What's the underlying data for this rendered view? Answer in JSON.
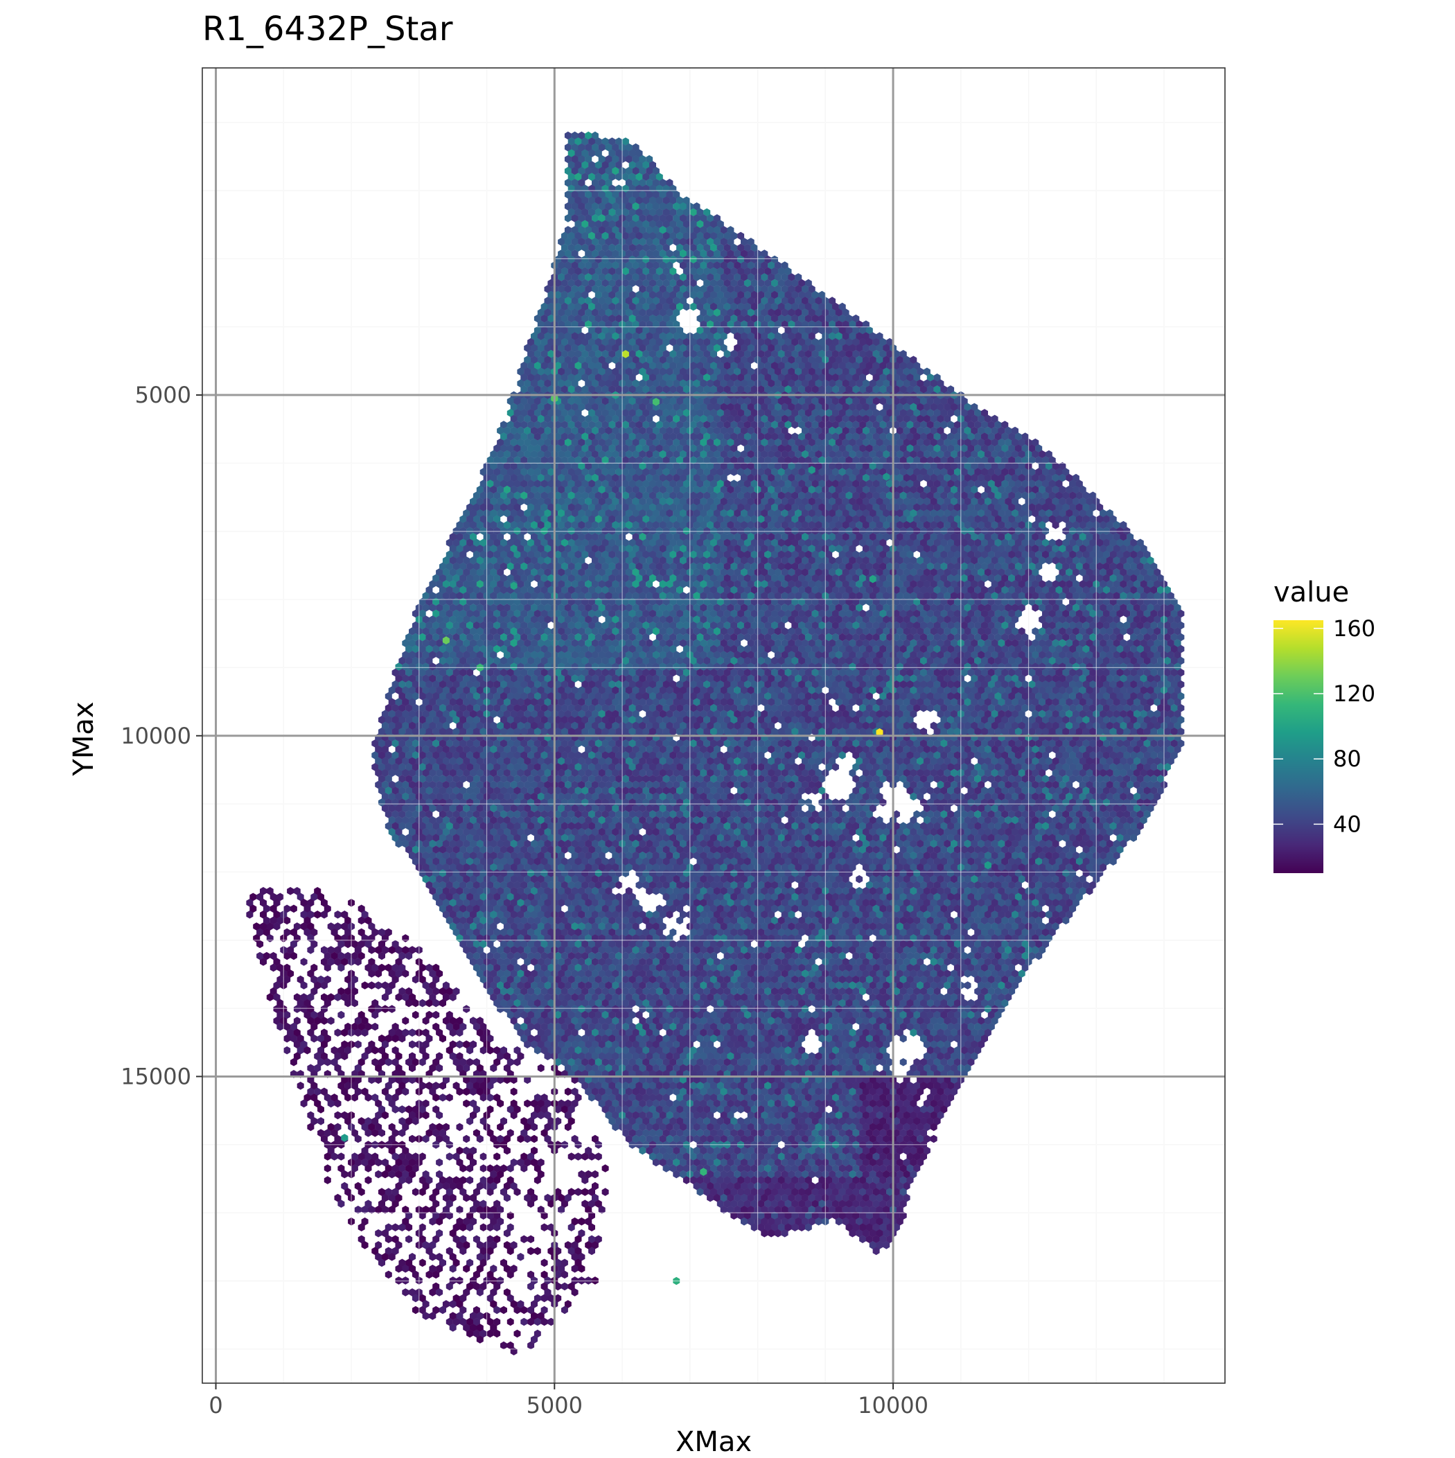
{
  "chart_data": {
    "type": "heatmap",
    "title": "R1_6432P_Star",
    "xlabel": "XMax",
    "ylabel": "YMax",
    "xlim": [
      -200,
      14900
    ],
    "ylim": [
      19500,
      200
    ],
    "y_reversed": true,
    "grid": true,
    "x_ticks": [
      {
        "value": 0,
        "label": "0"
      },
      {
        "value": 5000,
        "label": "5000"
      },
      {
        "value": 10000,
        "label": "10000"
      }
    ],
    "y_ticks": [
      {
        "value": 5000,
        "label": "5000"
      },
      {
        "value": 10000,
        "label": "10000"
      },
      {
        "value": 15000,
        "label": "15000"
      }
    ],
    "legend": {
      "title": "value",
      "placement": "right",
      "min": 10,
      "max": 165,
      "ticks": [
        {
          "value": 160,
          "label": "160"
        },
        {
          "value": 120,
          "label": "120"
        },
        {
          "value": 80,
          "label": "80"
        },
        {
          "value": 40,
          "label": "40"
        }
      ],
      "colormap": "viridis",
      "stops": [
        "#440154",
        "#482878",
        "#3E4A89",
        "#31688E",
        "#26828E",
        "#1F9E89",
        "#35B779",
        "#6DCD59",
        "#B4DE2C",
        "#FDE725"
      ]
    },
    "hex_spacing": 100,
    "tissue_region": [
      [
        5200,
        1100
      ],
      [
        6200,
        1300
      ],
      [
        6800,
        2000
      ],
      [
        7700,
        2600
      ],
      [
        8700,
        3300
      ],
      [
        9800,
        4100
      ],
      [
        11000,
        5000
      ],
      [
        12000,
        5600
      ],
      [
        12800,
        6300
      ],
      [
        13700,
        7200
      ],
      [
        14300,
        8200
      ],
      [
        14300,
        10000
      ],
      [
        13800,
        11200
      ],
      [
        12800,
        12400
      ],
      [
        12100,
        13300
      ],
      [
        11600,
        14100
      ],
      [
        11100,
        15000
      ],
      [
        10700,
        15700
      ],
      [
        10200,
        16800
      ],
      [
        10100,
        17300
      ],
      [
        9800,
        17600
      ],
      [
        9100,
        17100
      ],
      [
        8200,
        17400
      ],
      [
        7700,
        17100
      ],
      [
        7000,
        16600
      ],
      [
        6100,
        16000
      ],
      [
        5300,
        15000
      ],
      [
        4500,
        14500
      ],
      [
        3700,
        13200
      ],
      [
        3100,
        12200
      ],
      [
        2500,
        11300
      ],
      [
        2300,
        10200
      ],
      [
        2600,
        9200
      ],
      [
        3000,
        8000
      ],
      [
        3700,
        6700
      ],
      [
        4200,
        5500
      ],
      [
        4800,
        3700
      ],
      [
        5200,
        2400
      ]
    ],
    "sparse_region": [
      [
        400,
        12300
      ],
      [
        1400,
        12200
      ],
      [
        2400,
        12600
      ],
      [
        3100,
        13200
      ],
      [
        4200,
        14500
      ],
      [
        5300,
        15000
      ],
      [
        5800,
        16400
      ],
      [
        5600,
        18000
      ],
      [
        4500,
        19100
      ],
      [
        3000,
        18500
      ],
      [
        1800,
        17000
      ],
      [
        1200,
        15200
      ],
      [
        600,
        13200
      ]
    ],
    "holes": [
      {
        "cx": 10000,
        "cy": 11000,
        "r": 300
      },
      {
        "cx": 10500,
        "cy": 9800,
        "r": 200
      },
      {
        "cx": 9200,
        "cy": 10700,
        "r": 220
      },
      {
        "cx": 8800,
        "cy": 11000,
        "r": 150
      },
      {
        "cx": 10300,
        "cy": 11100,
        "r": 180
      },
      {
        "cx": 12000,
        "cy": 8300,
        "r": 190
      },
      {
        "cx": 12400,
        "cy": 7000,
        "r": 150
      },
      {
        "cx": 12300,
        "cy": 7600,
        "r": 160
      },
      {
        "cx": 12600,
        "cy": 8000,
        "r": 110
      },
      {
        "cx": 6400,
        "cy": 12400,
        "r": 190
      },
      {
        "cx": 6800,
        "cy": 12800,
        "r": 180
      },
      {
        "cx": 6100,
        "cy": 12200,
        "r": 140
      },
      {
        "cx": 10200,
        "cy": 14600,
        "r": 260
      },
      {
        "cx": 10100,
        "cy": 14900,
        "r": 160
      },
      {
        "cx": 8800,
        "cy": 14500,
        "r": 160
      },
      {
        "cx": 11100,
        "cy": 13700,
        "r": 140
      },
      {
        "cx": 9500,
        "cy": 12100,
        "r": 140
      },
      {
        "cx": 7000,
        "cy": 3900,
        "r": 170
      },
      {
        "cx": 7600,
        "cy": 4200,
        "r": 130
      },
      {
        "cx": 9300,
        "cy": 10400,
        "r": 150
      },
      {
        "cx": 4700,
        "cy": 15000,
        "r": 300
      },
      {
        "cx": 5100,
        "cy": 16400,
        "r": 280
      },
      {
        "cx": 4500,
        "cy": 17100,
        "r": 280
      },
      {
        "cx": 3500,
        "cy": 15500,
        "r": 200
      },
      {
        "cx": 1800,
        "cy": 12400,
        "r": 200
      },
      {
        "cx": 5500,
        "cy": 15600,
        "r": 250
      },
      {
        "cx": 3300,
        "cy": 16200,
        "r": 220
      }
    ],
    "hotspots": [
      {
        "x": 9800,
        "y": 9950,
        "value": 165
      },
      {
        "x": 6050,
        "y": 4400,
        "value": 150
      },
      {
        "x": 3400,
        "y": 8600,
        "value": 130
      },
      {
        "x": 5000,
        "y": 5050,
        "value": 125
      },
      {
        "x": 6500,
        "y": 5100,
        "value": 118
      },
      {
        "x": 3900,
        "y": 9000,
        "value": 115
      },
      {
        "x": 7200,
        "y": 16400,
        "value": 112
      },
      {
        "x": 6800,
        "y": 18000,
        "value": 108
      },
      {
        "x": 1900,
        "y": 15900,
        "value": 95
      },
      {
        "x": 11400,
        "y": 11900,
        "value": 95
      },
      {
        "x": 4400,
        "y": 7800,
        "value": 100
      },
      {
        "x": 9700,
        "y": 7700,
        "value": 100
      },
      {
        "x": 9900,
        "y": 6200,
        "value": 90
      },
      {
        "x": 8800,
        "y": 6100,
        "value": 92
      }
    ]
  }
}
